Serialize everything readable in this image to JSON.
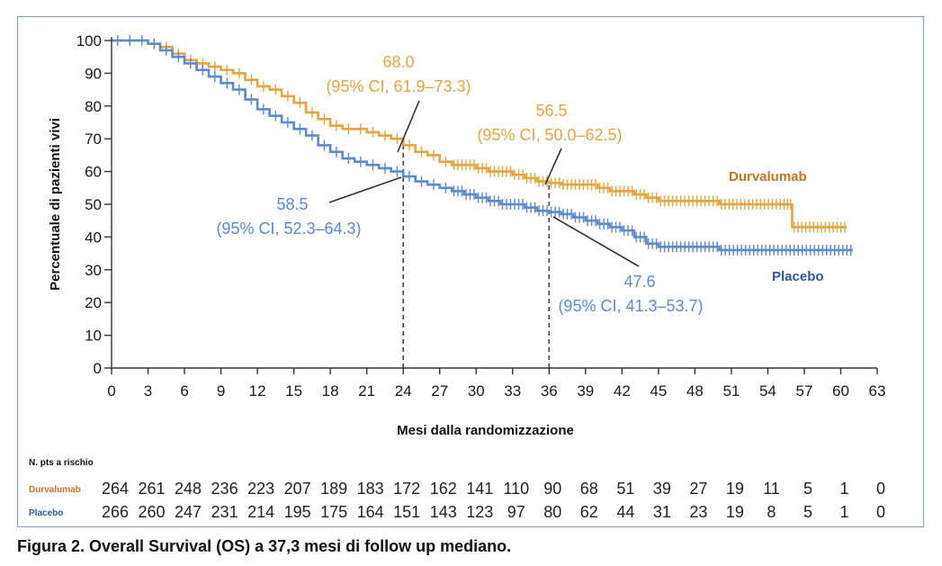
{
  "caption": "Figura 2. Overall Survival (OS) a 37,3 mesi di follow up mediano.",
  "colors": {
    "durvalumab": "#e8a33d",
    "durvalumab_label": "#c8741c",
    "placebo": "#5a8ad0",
    "placebo_label": "#2f55a4",
    "frame": "#7f9fc4"
  },
  "chart_data": {
    "type": "line",
    "subtype": "kaplan-meier",
    "xlabel": "Mesi dalla randomizzazione",
    "ylabel": "Percentuale di pazienti vivi",
    "xlim": [
      0,
      63
    ],
    "ylim": [
      0,
      100
    ],
    "xticks": [
      0,
      3,
      6,
      9,
      12,
      15,
      18,
      21,
      24,
      27,
      30,
      33,
      36,
      39,
      42,
      45,
      48,
      51,
      54,
      57,
      60,
      63
    ],
    "yticks": [
      0,
      10,
      20,
      30,
      40,
      50,
      60,
      70,
      80,
      90,
      100
    ],
    "reference_lines_x": [
      24,
      36
    ],
    "series": [
      {
        "name": "Durvalumab",
        "x": [
          0,
          1,
          2,
          3,
          4,
          5,
          6,
          7,
          8,
          9,
          10,
          11,
          12,
          13,
          14,
          15,
          16,
          17,
          18,
          19,
          20,
          21,
          22,
          23,
          24,
          25,
          26,
          27,
          28,
          29,
          30,
          31,
          32,
          33,
          34,
          35,
          36,
          37,
          38,
          39,
          40,
          41,
          42,
          43,
          44,
          45,
          50,
          55.5,
          56,
          60.5
        ],
        "y": [
          100,
          100,
          100,
          99,
          98,
          96,
          94,
          93,
          92,
          91,
          90,
          88,
          86,
          85,
          83,
          81,
          78,
          76,
          74,
          73,
          73,
          72,
          71,
          70,
          68,
          66,
          65,
          63,
          62,
          62,
          61,
          60,
          60,
          59,
          58,
          57,
          56.5,
          56,
          56,
          56,
          55,
          54,
          54,
          53,
          52,
          51,
          50,
          50,
          43,
          43
        ]
      },
      {
        "name": "Placebo",
        "x": [
          0,
          1,
          2,
          3,
          4,
          5,
          6,
          7,
          8,
          9,
          10,
          11,
          12,
          13,
          14,
          15,
          16,
          17,
          18,
          19,
          20,
          21,
          22,
          23,
          24,
          25,
          26,
          27,
          28,
          29,
          30,
          31,
          32,
          33,
          34,
          35,
          36,
          37,
          38,
          39,
          40,
          41,
          42,
          43,
          44,
          45,
          50,
          55,
          61
        ],
        "y": [
          100,
          100,
          100,
          99,
          97,
          95,
          93,
          91,
          89,
          87,
          85,
          82,
          79,
          77,
          75,
          73,
          71,
          68,
          66,
          64,
          63,
          62,
          61,
          60,
          58.5,
          57,
          56,
          55,
          54,
          53,
          52,
          51,
          50,
          50,
          49,
          48,
          47.6,
          47,
          46,
          45,
          44,
          43,
          42,
          40,
          38,
          37,
          36,
          36,
          36
        ]
      }
    ],
    "annotations": [
      {
        "value": "68.0",
        "ci": "(95% CI, 61.9–73.3)"
      },
      {
        "value": "56.5",
        "ci": "(95% CI, 50.0–62.5)"
      },
      {
        "value": "58.5",
        "ci": "(95% CI, 52.3–64.3)"
      },
      {
        "value": "47.6",
        "ci": "(95% CI, 41.3–53.7)"
      }
    ],
    "risk_table": {
      "title": "N. pts a  rischio",
      "rows": [
        {
          "name": "Durvalumab",
          "values": [
            "264",
            "261",
            "248",
            "236",
            "223",
            "207",
            "189",
            "183",
            "172",
            "162",
            "141",
            "110",
            "90",
            "68",
            "51",
            "39",
            "27",
            "19",
            "11",
            "5",
            "1",
            "0"
          ]
        },
        {
          "name": "Placebo",
          "values": [
            "266",
            "260",
            "247",
            "231",
            "214",
            "195",
            "175",
            "164",
            "151",
            "143",
            "123",
            "97",
            "80",
            "62",
            "44",
            "31",
            "23",
            "19",
            "8",
            "5",
            "1",
            "0"
          ]
        }
      ]
    }
  }
}
